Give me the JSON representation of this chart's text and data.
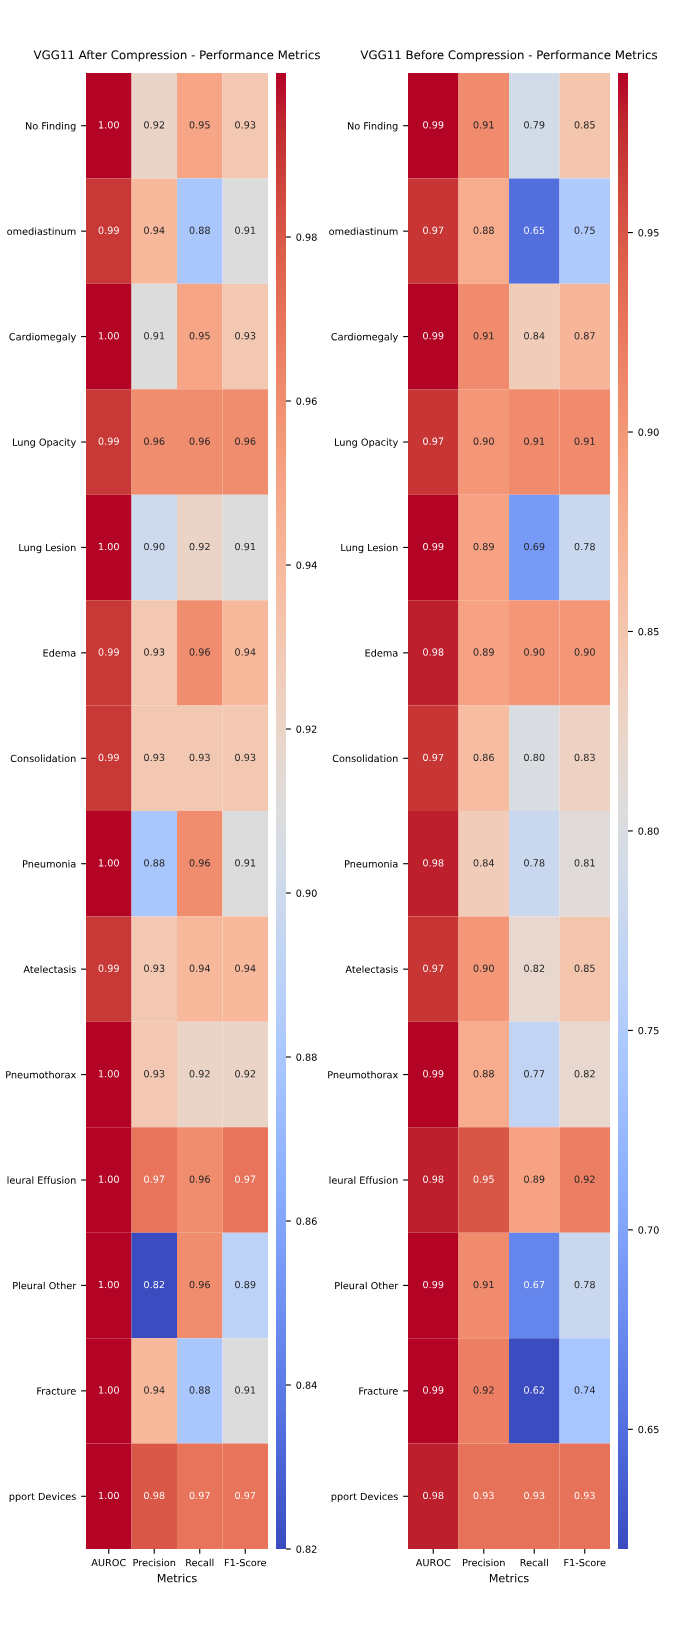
{
  "chart_data": [
    {
      "type": "heatmap",
      "title": "VGG11 After Compression - Performance Metrics",
      "xlabel": "Metrics",
      "categories": [
        "AUROC",
        "Precision",
        "Recall",
        "F1-Score"
      ],
      "y_categories": [
        "No Finding",
        "omediastinum",
        "Cardiomegaly",
        "Lung Opacity",
        "Lung Lesion",
        "Edema",
        "Consolidation",
        "Pneumonia",
        "Atelectasis",
        "Pneumothorax",
        "leural Effusion",
        "Pleural Other",
        "Fracture",
        "pport Devices"
      ],
      "cells": [
        [
          1.0,
          0.92,
          0.95,
          0.93
        ],
        [
          0.99,
          0.94,
          0.88,
          0.91
        ],
        [
          1.0,
          0.91,
          0.95,
          0.93
        ],
        [
          0.99,
          0.96,
          0.96,
          0.96
        ],
        [
          1.0,
          0.9,
          0.92,
          0.91
        ],
        [
          0.99,
          0.93,
          0.96,
          0.94
        ],
        [
          0.99,
          0.93,
          0.93,
          0.93
        ],
        [
          1.0,
          0.88,
          0.96,
          0.91
        ],
        [
          0.99,
          0.93,
          0.94,
          0.94
        ],
        [
          1.0,
          0.93,
          0.92,
          0.92
        ],
        [
          1.0,
          0.97,
          0.96,
          0.97
        ],
        [
          1.0,
          0.82,
          0.96,
          0.89
        ],
        [
          1.0,
          0.94,
          0.88,
          0.91
        ],
        [
          1.0,
          0.98,
          0.97,
          0.97
        ]
      ],
      "cell_labels": [
        [
          "1.00",
          "0.92",
          "0.95",
          "0.93"
        ],
        [
          "0.99",
          "0.94",
          "0.88",
          "0.91"
        ],
        [
          "1.00",
          "0.91",
          "0.95",
          "0.93"
        ],
        [
          "0.99",
          "0.96",
          "0.96",
          "0.96"
        ],
        [
          "1.00",
          "0.90",
          "0.92",
          "0.91"
        ],
        [
          "0.99",
          "0.93",
          "0.96",
          "0.94"
        ],
        [
          "0.99",
          "0.93",
          "0.93",
          "0.93"
        ],
        [
          "1.00",
          "0.88",
          "0.96",
          "0.91"
        ],
        [
          "0.99",
          "0.93",
          "0.94",
          "0.94"
        ],
        [
          "1.00",
          "0.93",
          "0.92",
          "0.92"
        ],
        [
          "1.00",
          "0.97",
          "0.96",
          "0.97"
        ],
        [
          "1.00",
          "0.82",
          "0.96",
          "0.89"
        ],
        [
          "1.00",
          "0.94",
          "0.88",
          "0.91"
        ],
        [
          "1.00",
          "0.98",
          "0.97",
          "0.97"
        ]
      ],
      "data_labels": true,
      "clim": [
        0.82,
        1.0
      ],
      "cticks": [
        0.82,
        0.84,
        0.86,
        0.88,
        {
          "value": 0.9,
          "label": "0.90"
        },
        0.92,
        0.94,
        0.96,
        0.98
      ]
    },
    {
      "type": "heatmap",
      "title": "VGG11 Before Compression - Performance Metrics",
      "xlabel": "Metrics",
      "categories": [
        "AUROC",
        "Precision",
        "Recall",
        "F1-Score"
      ],
      "y_categories": [
        "No Finding",
        "omediastinum",
        "Cardiomegaly",
        "Lung Opacity",
        "Lung Lesion",
        "Edema",
        "Consolidation",
        "Pneumonia",
        "Atelectasis",
        "Pneumothorax",
        "leural Effusion",
        "Pleural Other",
        "Fracture",
        "pport Devices"
      ],
      "cells": [
        [
          0.99,
          0.91,
          0.79,
          0.85
        ],
        [
          0.97,
          0.88,
          0.65,
          0.75
        ],
        [
          0.99,
          0.91,
          0.84,
          0.87
        ],
        [
          0.97,
          0.9,
          0.91,
          0.91
        ],
        [
          0.99,
          0.89,
          0.69,
          0.78
        ],
        [
          0.98,
          0.89,
          0.9,
          0.9
        ],
        [
          0.97,
          0.86,
          0.8,
          0.83
        ],
        [
          0.98,
          0.84,
          0.78,
          0.81
        ],
        [
          0.97,
          0.9,
          0.82,
          0.85
        ],
        [
          0.99,
          0.88,
          0.77,
          0.82
        ],
        [
          0.98,
          0.95,
          0.89,
          0.92
        ],
        [
          0.99,
          0.91,
          0.67,
          0.78
        ],
        [
          0.99,
          0.92,
          0.62,
          0.74
        ],
        [
          0.98,
          0.93,
          0.93,
          0.93
        ]
      ],
      "cell_labels": [
        [
          "0.99",
          "0.91",
          "0.79",
          "0.85"
        ],
        [
          "0.97",
          "0.88",
          "0.65",
          "0.75"
        ],
        [
          "0.99",
          "0.91",
          "0.84",
          "0.87"
        ],
        [
          "0.97",
          "0.90",
          "0.91",
          "0.91"
        ],
        [
          "0.99",
          "0.89",
          "0.69",
          "0.78"
        ],
        [
          "0.98",
          "0.89",
          "0.90",
          "0.90"
        ],
        [
          "0.97",
          "0.86",
          "0.80",
          "0.83"
        ],
        [
          "0.98",
          "0.84",
          "0.78",
          "0.81"
        ],
        [
          "0.97",
          "0.90",
          "0.82",
          "0.85"
        ],
        [
          "0.99",
          "0.88",
          "0.77",
          "0.82"
        ],
        [
          "0.98",
          "0.95",
          "0.89",
          "0.92"
        ],
        [
          "0.99",
          "0.91",
          "0.67",
          "0.78"
        ],
        [
          "0.99",
          "0.92",
          "0.62",
          "0.74"
        ],
        [
          "0.98",
          "0.93",
          "0.93",
          "0.93"
        ]
      ],
      "data_labels": true,
      "clim": [
        0.62,
        0.99
      ],
      "cticks": [
        0.65,
        {
          "value": 0.7,
          "label": "0.70"
        },
        0.75,
        {
          "value": 0.8,
          "label": "0.80"
        },
        0.85,
        {
          "value": 0.9,
          "label": "0.90"
        },
        0.95
      ]
    }
  ]
}
